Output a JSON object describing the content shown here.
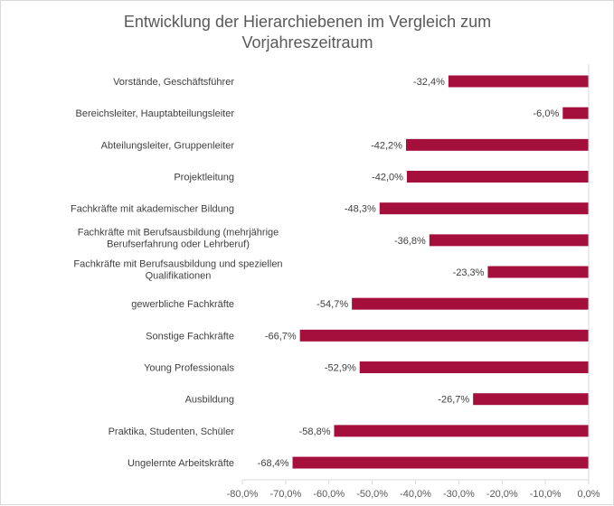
{
  "chart_data": {
    "type": "bar",
    "orientation": "horizontal",
    "title_lines": [
      "Entwicklung der Hierarchiebenen im Vergleich zum",
      "Vorjahreszeitraum"
    ],
    "categories": [
      [
        "Vorstände, Geschäftsführer"
      ],
      [
        "Bereichsleiter, Hauptabteilungsleiter"
      ],
      [
        "Abteilungsleiter, Gruppenleiter"
      ],
      [
        "Projektleitung"
      ],
      [
        "Fachkräfte mit akademischer Bildung"
      ],
      [
        "Fachkräfte mit Berufsausbildung (mehrjährige",
        "Berufserfahrung oder Lehrberuf)"
      ],
      [
        "Fachkräfte mit Berufsausbildung und speziellen",
        "Qualifikationen"
      ],
      [
        "gewerbliche Fachkräfte"
      ],
      [
        "Sonstige Fachkräfte"
      ],
      [
        "Young Professionals"
      ],
      [
        "Ausbildung"
      ],
      [
        "Praktika, Studenten, Schüler"
      ],
      [
        "Ungelernte Arbeitskräfte"
      ]
    ],
    "values": [
      -32.4,
      -6.0,
      -42.2,
      -42.0,
      -48.3,
      -36.8,
      -23.3,
      -54.7,
      -66.7,
      -52.9,
      -26.7,
      -58.8,
      -68.4
    ],
    "value_labels": [
      "-32,4%",
      "-6,0%",
      "-42,2%",
      "-42,0%",
      "-48,3%",
      "-36,8%",
      "-23,3%",
      "-54,7%",
      "-66,7%",
      "-52,9%",
      "-26,7%",
      "-58,8%",
      "-68,4%"
    ],
    "xlim": [
      -80,
      0
    ],
    "xticks": [
      -80,
      -70,
      -60,
      -50,
      -40,
      -30,
      -20,
      -10,
      0
    ],
    "xtick_labels": [
      "-80,0%",
      "-70,0%",
      "-60,0%",
      "-50,0%",
      "-40,0%",
      "-30,0%",
      "-20,0%",
      "-10,0%",
      "0,0%"
    ],
    "xlabel": "",
    "ylabel": "",
    "grid": false,
    "legend": false,
    "bar_color": "#a50f3c",
    "axis_color": "#d9d9d9"
  }
}
